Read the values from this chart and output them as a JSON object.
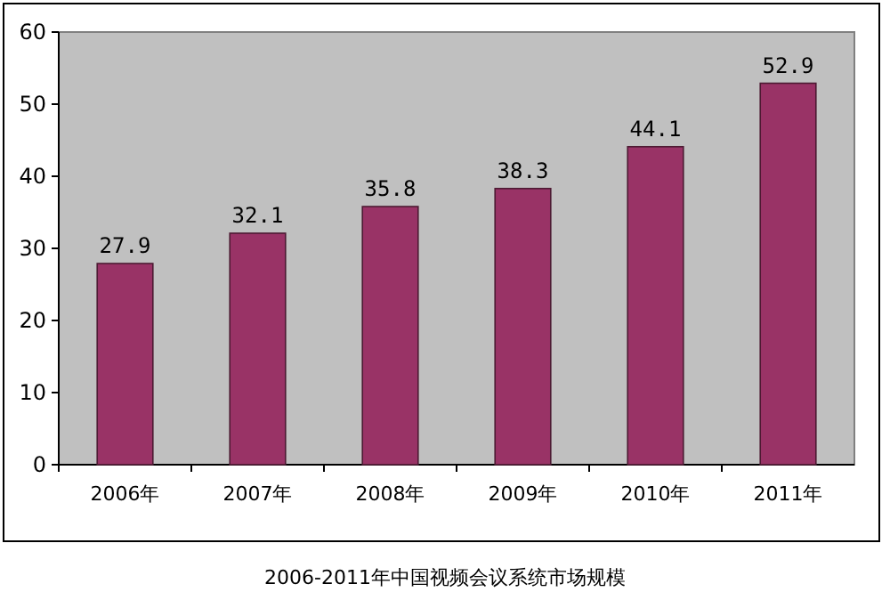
{
  "chart_data": {
    "type": "bar",
    "categories": [
      "2006年",
      "2007年",
      "2008年",
      "2009年",
      "2010年",
      "2011年"
    ],
    "values": [
      27.9,
      32.1,
      35.8,
      38.3,
      44.1,
      52.9
    ],
    "color": "#993366",
    "ylim": [
      0,
      60
    ],
    "yticks": [
      0,
      10,
      20,
      30,
      40,
      50,
      60
    ],
    "grid": false,
    "data_labels": true,
    "annotations": [
      "2006-2011年中国视频会议系统市场规模"
    ]
  }
}
